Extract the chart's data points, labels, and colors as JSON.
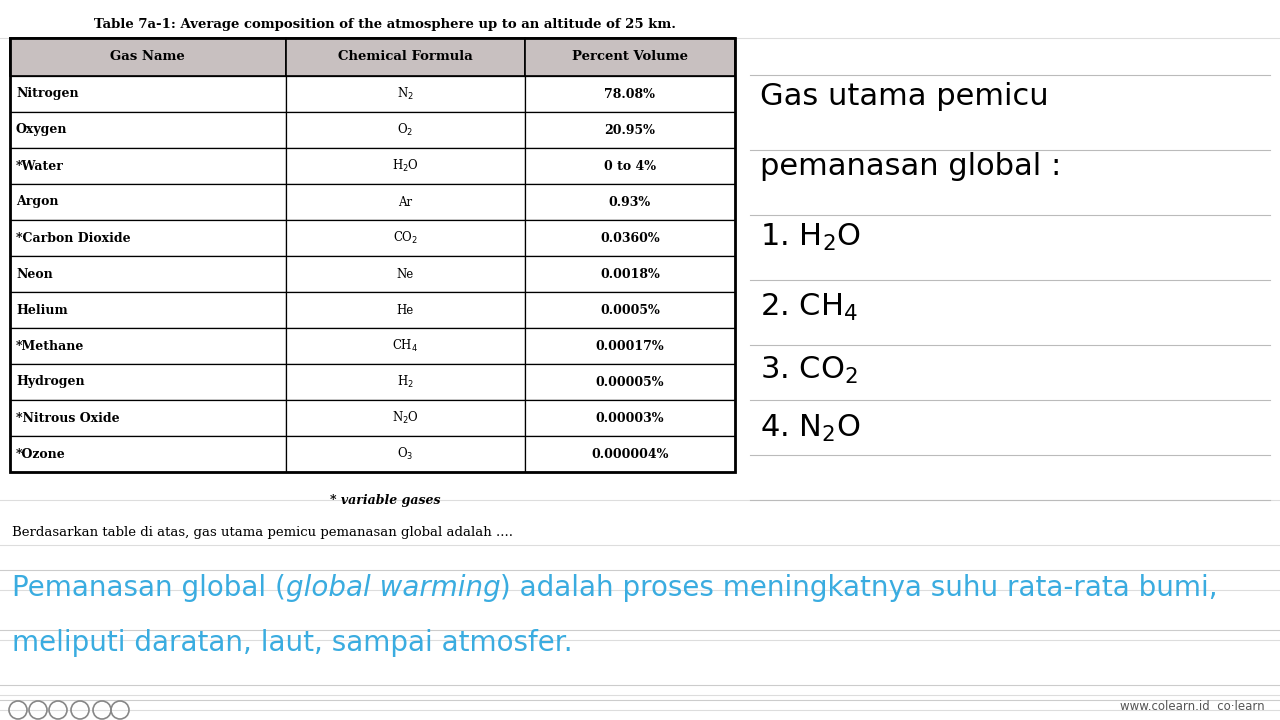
{
  "title": "Table 7a-1: Average composition of the atmosphere up to an altitude of 25 km.",
  "col_headers": [
    "Gas Name",
    "Chemical Formula",
    "Percent Volume"
  ],
  "rows": [
    [
      "Nitrogen",
      "N$_2$",
      "78.08%"
    ],
    [
      "Oxygen",
      "O$_2$",
      "20.95%"
    ],
    [
      "*Water",
      "H$_2$O",
      "0 to 4%"
    ],
    [
      "Argon",
      "Ar",
      "0.93%"
    ],
    [
      "*Carbon Dioxide",
      "CO$_2$",
      "0.0360%"
    ],
    [
      "Neon",
      "Ne",
      "0.0018%"
    ],
    [
      "Helium",
      "He",
      "0.0005%"
    ],
    [
      "*Methane",
      "CH$_4$",
      "0.00017%"
    ],
    [
      "Hydrogen",
      "H$_2$",
      "0.00005%"
    ],
    [
      "*Nitrous Oxide",
      "N$_2$O",
      "0.00003%"
    ],
    [
      "*Ozone",
      "O$_3$",
      "0.000004%"
    ]
  ],
  "footnote": "* variable gases",
  "below_table_text": "Berdasarkan table di atas, gas utama pemicu pemanasan global adalah ....",
  "cyan_line1_normal1": "Pemanasan global (",
  "cyan_line1_italic": "global warming",
  "cyan_line1_normal2": ") adalah proses meningkatnya suhu rata-rata bumi,",
  "cyan_line2": "meliputi daratan, laut, sampai atmosfer.",
  "side_title_line1": "Gas utama pemicu",
  "side_title_line2": "pemanasan global :",
  "side_items": [
    "1. H$_2$O",
    "2. CH$_4$",
    "3. CO$_2$",
    "4. N$_2$O"
  ],
  "header_bg": "#c8c0c0",
  "border_color": "#000000",
  "bg_color": "#ffffff",
  "cyan_color": "#3aace0",
  "side_line_color": "#bbbbbb",
  "bottom_line_color": "#cccccc",
  "colearn_color": "#333333"
}
